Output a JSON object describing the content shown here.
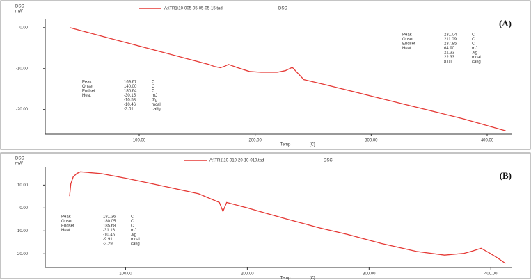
{
  "chart_data": [
    {
      "type": "line",
      "panel_label": "(A)",
      "y_label": [
        "DSC",
        "mW"
      ],
      "x_label": "Temp",
      "x_unit": "[C]",
      "legend_tag": "DSC",
      "xlim": [
        19,
        421
      ],
      "ylim": [
        -26,
        2
      ],
      "xticks": [
        {
          "value": 100,
          "label": "100.00"
        },
        {
          "value": 200,
          "label": "200.00"
        },
        {
          "value": 300,
          "label": "300.00"
        },
        {
          "value": 400,
          "label": "400.00"
        }
      ],
      "yticks": [
        {
          "value": 0,
          "label": "0.00"
        },
        {
          "value": -10,
          "label": "-10.00"
        },
        {
          "value": -20,
          "label": "-20.00"
        }
      ],
      "x": [
        40,
        60,
        80,
        100,
        120,
        140,
        160,
        165,
        170,
        174,
        177,
        185,
        195,
        205,
        219,
        226,
        232,
        237,
        242,
        260,
        300,
        340,
        380,
        416
      ],
      "series": [
        {
          "name": "A:\\TR1\\10-005-05-05-05-15.tad",
          "color": "#e53935",
          "values": [
            0,
            -1.5,
            -3.0,
            -4.5,
            -6.0,
            -7.5,
            -9.0,
            -9.5,
            -9.8,
            -9.4,
            -9.0,
            -9.8,
            -10.7,
            -10.9,
            -10.9,
            -10.5,
            -9.7,
            -11.2,
            -12.7,
            -13.9,
            -16.7,
            -19.5,
            -22.3,
            -25.2
          ]
        }
      ],
      "annotations": [
        {
          "rows": [
            [
              "Peak",
              "169.67",
              "C"
            ],
            [
              "Onset",
              "140.00",
              "C"
            ],
            [
              "Endset",
              "180.64",
              "C"
            ],
            [
              "Heat",
              "-30.15",
              "mJ"
            ],
            [
              "",
              "-10.58",
              "J/g"
            ],
            [
              "",
              "-10.46",
              "mcal"
            ],
            [
              "",
              "-3.01",
              "cal/g"
            ]
          ]
        },
        {
          "rows": [
            [
              "Peak",
              "231.04",
              "C"
            ],
            [
              "Onset",
              "211.09",
              "C"
            ],
            [
              "Endset",
              "237.85",
              "C"
            ],
            [
              "Heat",
              "64.90",
              "mJ"
            ],
            [
              "",
              "21.33",
              "J/g"
            ],
            [
              "",
              "22.33",
              "mcal"
            ],
            [
              "",
              "8.01",
              "cal/g"
            ]
          ]
        }
      ]
    },
    {
      "type": "line",
      "panel_label": "(B)",
      "y_label": [
        "DSC",
        "mW"
      ],
      "x_label": "Temp",
      "x_unit": "[C]",
      "legend_tag": "DSC",
      "xlim": [
        34,
        417
      ],
      "ylim": [
        -26,
        18
      ],
      "xticks": [
        {
          "value": 100,
          "label": "100.00"
        },
        {
          "value": 200,
          "label": "200.00"
        },
        {
          "value": 300,
          "label": "300.00"
        },
        {
          "value": 400,
          "label": "400.00"
        }
      ],
      "yticks": [
        {
          "value": 10,
          "label": "10.00"
        },
        {
          "value": 0,
          "label": "0.00"
        },
        {
          "value": -10,
          "label": "-10.00"
        },
        {
          "value": -20,
          "label": "-20.00"
        }
      ],
      "x": [
        54,
        55,
        57,
        60,
        63,
        80,
        100,
        120,
        140,
        160,
        177,
        180,
        183,
        200,
        230,
        260,
        282,
        310,
        339,
        362,
        378,
        385,
        392,
        399,
        406,
        412
      ],
      "series": [
        {
          "name": "A:\\TR1\\10-010-20-10-010.tad",
          "color": "#e53935",
          "values": [
            5.2,
            10.5,
            13.6,
            15.1,
            15.8,
            15.0,
            13.0,
            10.8,
            8.5,
            6.2,
            2.4,
            -1.5,
            2.4,
            0.0,
            -4.5,
            -8.8,
            -11.5,
            -15.5,
            -19.0,
            -20.6,
            -19.8,
            -18.8,
            -17.6,
            -19.7,
            -22.0,
            -24.2
          ]
        }
      ],
      "annotations": [
        {
          "rows": [
            [
              "Peak",
              "181.36",
              "C"
            ],
            [
              "Onset",
              "180.05",
              "C"
            ],
            [
              "Endset",
              "185.68",
              "C"
            ],
            [
              "Heat",
              "-31.16",
              "mJ"
            ],
            [
              "",
              "-10.46",
              "J/g"
            ],
            [
              "",
              "-9.91",
              "mcal"
            ],
            [
              "",
              "-3.29",
              "cal/g"
            ]
          ]
        }
      ]
    }
  ]
}
